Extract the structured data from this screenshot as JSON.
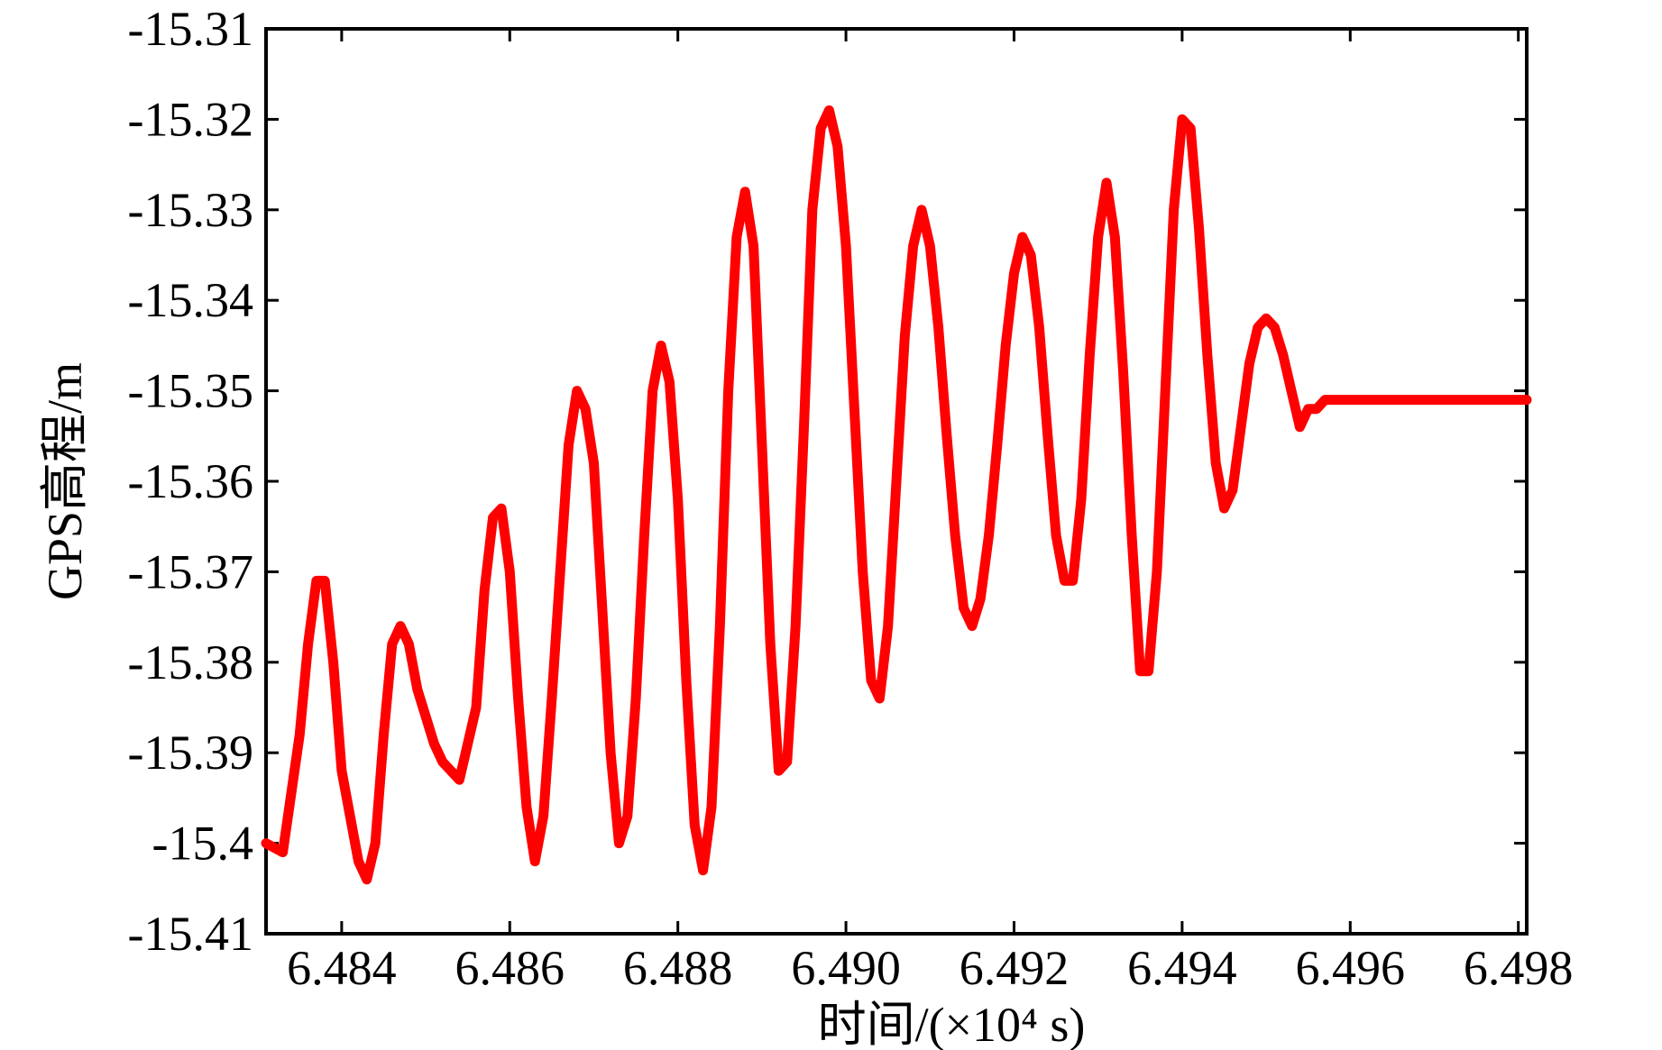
{
  "chart_data": {
    "type": "line",
    "title": "",
    "xlabel": "时间/(×10⁴ s)",
    "ylabel": "GPS高程/m",
    "xlim": [
      6.4831,
      6.4981
    ],
    "ylim": [
      -15.41,
      -15.31
    ],
    "grid": false,
    "legend": "none",
    "x_ticks": [
      6.484,
      6.486,
      6.488,
      6.49,
      6.492,
      6.494,
      6.496,
      6.498
    ],
    "x_tick_labels": [
      "6.484",
      "6.486",
      "6.488",
      "6.490",
      "6.492",
      "6.494",
      "6.496",
      "6.498"
    ],
    "y_ticks": [
      -15.31,
      -15.32,
      -15.33,
      -15.34,
      -15.35,
      -15.36,
      -15.37,
      -15.38,
      -15.39,
      -15.4,
      -15.41
    ],
    "y_tick_labels": [
      "-15.31",
      "-15.32",
      "-15.33",
      "-15.34",
      "-15.35",
      "-15.36",
      "-15.37",
      "-15.38",
      "-15.39",
      "-15.4",
      "-15.41"
    ],
    "series": [
      {
        "color": "#ff0000",
        "x": [
          6.4831,
          6.4833,
          6.4835,
          6.4836,
          6.4837,
          6.4838,
          6.4839,
          6.484,
          6.4842,
          6.4843,
          6.4844,
          6.4845,
          6.4846,
          6.4847,
          6.4848,
          6.4849,
          6.485,
          6.4851,
          6.4852,
          6.4854,
          6.4856,
          6.4857,
          6.4858,
          6.4859,
          6.486,
          6.4861,
          6.4862,
          6.4863,
          6.4864,
          6.4865,
          6.4866,
          6.4867,
          6.4868,
          6.4869,
          6.487,
          6.4871,
          6.4872,
          6.4873,
          6.4874,
          6.4875,
          6.4876,
          6.4877,
          6.4878,
          6.4879,
          6.488,
          6.4881,
          6.4882,
          6.4883,
          6.4884,
          6.4885,
          6.4886,
          6.4887,
          6.4888,
          6.4889,
          6.489,
          6.4891,
          6.4892,
          6.4893,
          6.4894,
          6.4895,
          6.4896,
          6.4897,
          6.4898,
          6.4899,
          6.49,
          6.4901,
          6.4902,
          6.4903,
          6.4904,
          6.4905,
          6.4906,
          6.4907,
          6.4908,
          6.4909,
          6.491,
          6.4911,
          6.4912,
          6.4913,
          6.4914,
          6.4915,
          6.4916,
          6.4917,
          6.4918,
          6.4919,
          6.492,
          6.4921,
          6.4922,
          6.4923,
          6.4924,
          6.4925,
          6.4926,
          6.4927,
          6.4928,
          6.4929,
          6.493,
          6.4931,
          6.4932,
          6.4933,
          6.4934,
          6.4935,
          6.4936,
          6.4937,
          6.4938,
          6.4939,
          6.494,
          6.4941,
          6.4942,
          6.4943,
          6.4944,
          6.4945,
          6.4946,
          6.4947,
          6.4948,
          6.4949,
          6.495,
          6.4951,
          6.4952,
          6.4953,
          6.4954,
          6.4955,
          6.4956,
          6.4957,
          6.4958,
          6.4959,
          6.496,
          6.4961,
          6.4962,
          6.4963,
          6.4964,
          6.4965,
          6.4966,
          6.4967,
          6.4968,
          6.4969,
          6.497,
          6.4971,
          6.4972,
          6.4973,
          6.4974,
          6.4975,
          6.4976,
          6.4977,
          6.4978,
          6.4979,
          6.498,
          6.4981
        ],
        "y": [
          -15.4,
          -15.401,
          -15.388,
          -15.378,
          -15.371,
          -15.371,
          -15.38,
          -15.392,
          -15.402,
          -15.404,
          -15.4,
          -15.388,
          -15.378,
          -15.376,
          -15.378,
          -15.383,
          -15.386,
          -15.389,
          -15.391,
          -15.393,
          -15.385,
          -15.372,
          -15.364,
          -15.363,
          -15.37,
          -15.384,
          -15.396,
          -15.402,
          -15.397,
          -15.384,
          -15.37,
          -15.356,
          -15.35,
          -15.352,
          -15.358,
          -15.374,
          -15.39,
          -15.4,
          -15.397,
          -15.384,
          -15.366,
          -15.35,
          -15.345,
          -15.349,
          -15.362,
          -15.382,
          -15.398,
          -15.403,
          -15.396,
          -15.376,
          -15.35,
          -15.333,
          -15.328,
          -15.334,
          -15.356,
          -15.378,
          -15.392,
          -15.391,
          -15.376,
          -15.354,
          -15.33,
          -15.321,
          -15.319,
          -15.323,
          -15.334,
          -15.352,
          -15.37,
          -15.382,
          -15.384,
          -15.376,
          -15.36,
          -15.344,
          -15.334,
          -15.33,
          -15.334,
          -15.343,
          -15.355,
          -15.366,
          -15.374,
          -15.376,
          -15.373,
          -15.366,
          -15.356,
          -15.345,
          -15.337,
          -15.333,
          -15.335,
          -15.343,
          -15.355,
          -15.366,
          -15.371,
          -15.371,
          -15.362,
          -15.346,
          -15.333,
          -15.327,
          -15.333,
          -15.348,
          -15.366,
          -15.381,
          -15.381,
          -15.37,
          -15.35,
          -15.33,
          -15.32,
          -15.321,
          -15.332,
          -15.346,
          -15.358,
          -15.363,
          -15.361,
          -15.354,
          -15.347,
          -15.343,
          -15.342,
          -15.343,
          -15.346,
          -15.35,
          -15.354,
          -15.352,
          -15.352,
          -15.351,
          -15.351,
          -15.351,
          -15.351,
          -15.351,
          -15.351,
          -15.351,
          -15.351,
          -15.351,
          -15.351,
          -15.351,
          -15.351,
          -15.351,
          -15.351,
          -15.351,
          -15.351,
          -15.351,
          -15.351,
          -15.351,
          -15.351,
          -15.351,
          -15.351,
          -15.351,
          -15.351,
          -15.351
        ]
      }
    ]
  }
}
